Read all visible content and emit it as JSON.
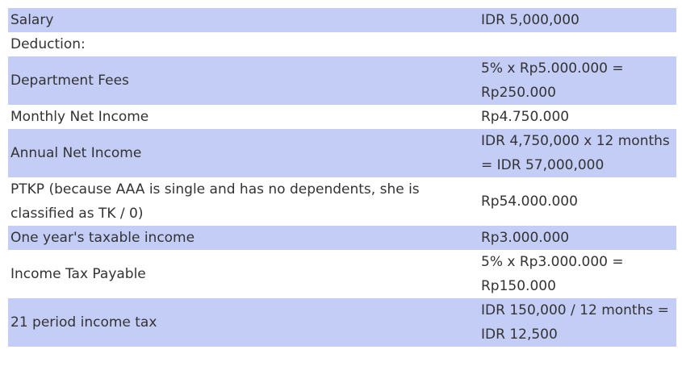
{
  "colors": {
    "row_shade": "#c3cdf6",
    "row_plain": "#ffffff",
    "text": "#333333"
  },
  "rows": [
    {
      "label": "Salary",
      "value": "IDR 5,000,000",
      "shaded": true
    },
    {
      "label": "Deduction:",
      "value": "",
      "shaded": false
    },
    {
      "label": "Department Fees",
      "value": "5% x Rp5.000.000 = Rp250.000",
      "shaded": true
    },
    {
      "label": "Monthly Net Income",
      "value": "Rp4.750.000",
      "shaded": false
    },
    {
      "label": "Annual Net Income",
      "value": "IDR 4,750,000 x 12 months = IDR 57,000,000",
      "shaded": true
    },
    {
      "label": "PTKP (because AAA is single and has no dependents, she is classified as TK / 0)",
      "value": "Rp54.000.000",
      "shaded": false
    },
    {
      "label": "One year's taxable income",
      "value": "Rp3.000.000",
      "shaded": true
    },
    {
      "label": "Income Tax Payable",
      "value": "5% x Rp3.000.000 = Rp150.000",
      "shaded": false
    },
    {
      "label": "21 period income tax",
      "value": "IDR 150,000 / 12 months = IDR 12,500",
      "shaded": true
    }
  ]
}
